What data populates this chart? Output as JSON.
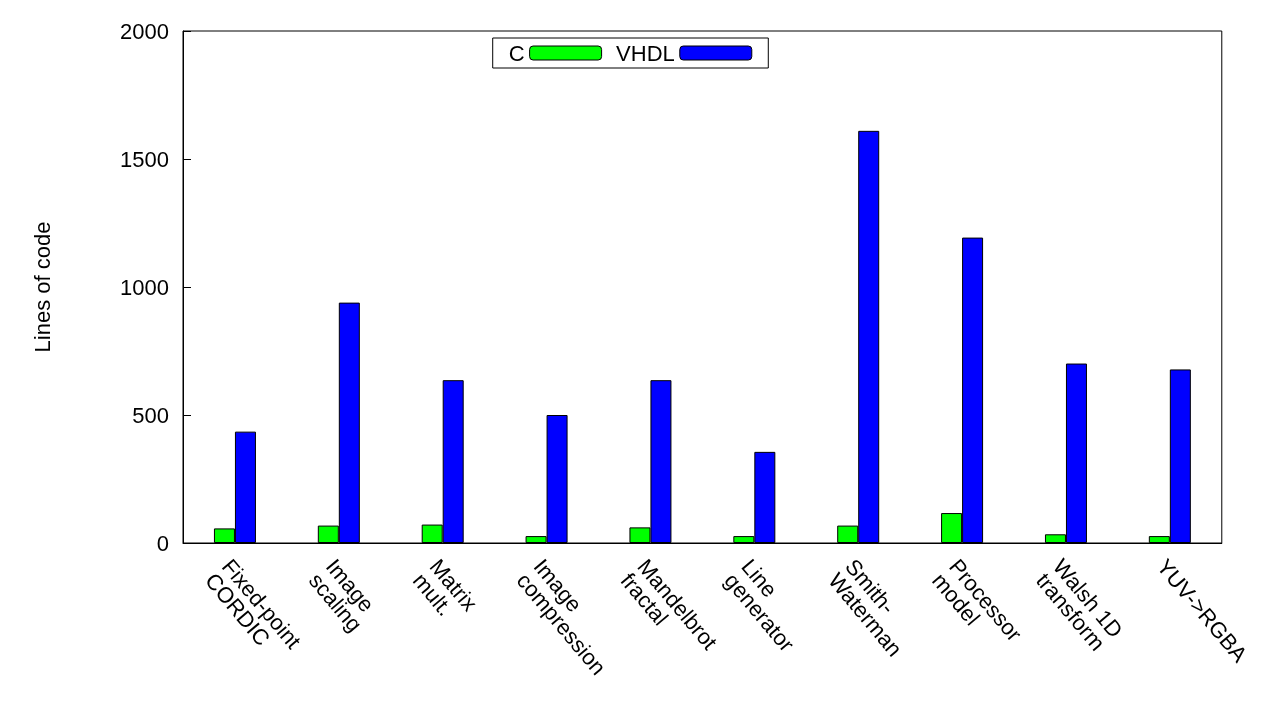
{
  "chart_data": {
    "type": "bar",
    "ylabel": "Lines of code",
    "categories": [
      "Fixed-point\nCORDIC",
      "Image\nscaling",
      "Matrix\nmult.",
      "Image\ncompression",
      "Mandelbrot\nfractal",
      "Line\ngenerator",
      "Smith-\nWaterman",
      "Processor\nmodel",
      "Walsh 1D\ntransform",
      "YUV->RGBA"
    ],
    "series": [
      {
        "name": "C",
        "color": "#00ff00",
        "values": [
          57,
          68,
          72,
          27,
          61,
          27,
          68,
          117,
          34,
          27
        ]
      },
      {
        "name": "VHDL",
        "color": "#0000ff",
        "values": [
          435,
          939,
          636,
          500,
          636,
          356,
          1610,
          1193,
          701,
          678
        ]
      }
    ],
    "ylim": [
      0,
      2000
    ],
    "yticks": [
      0,
      500,
      1000,
      1500,
      2000
    ],
    "grid": false,
    "legend": "top"
  }
}
